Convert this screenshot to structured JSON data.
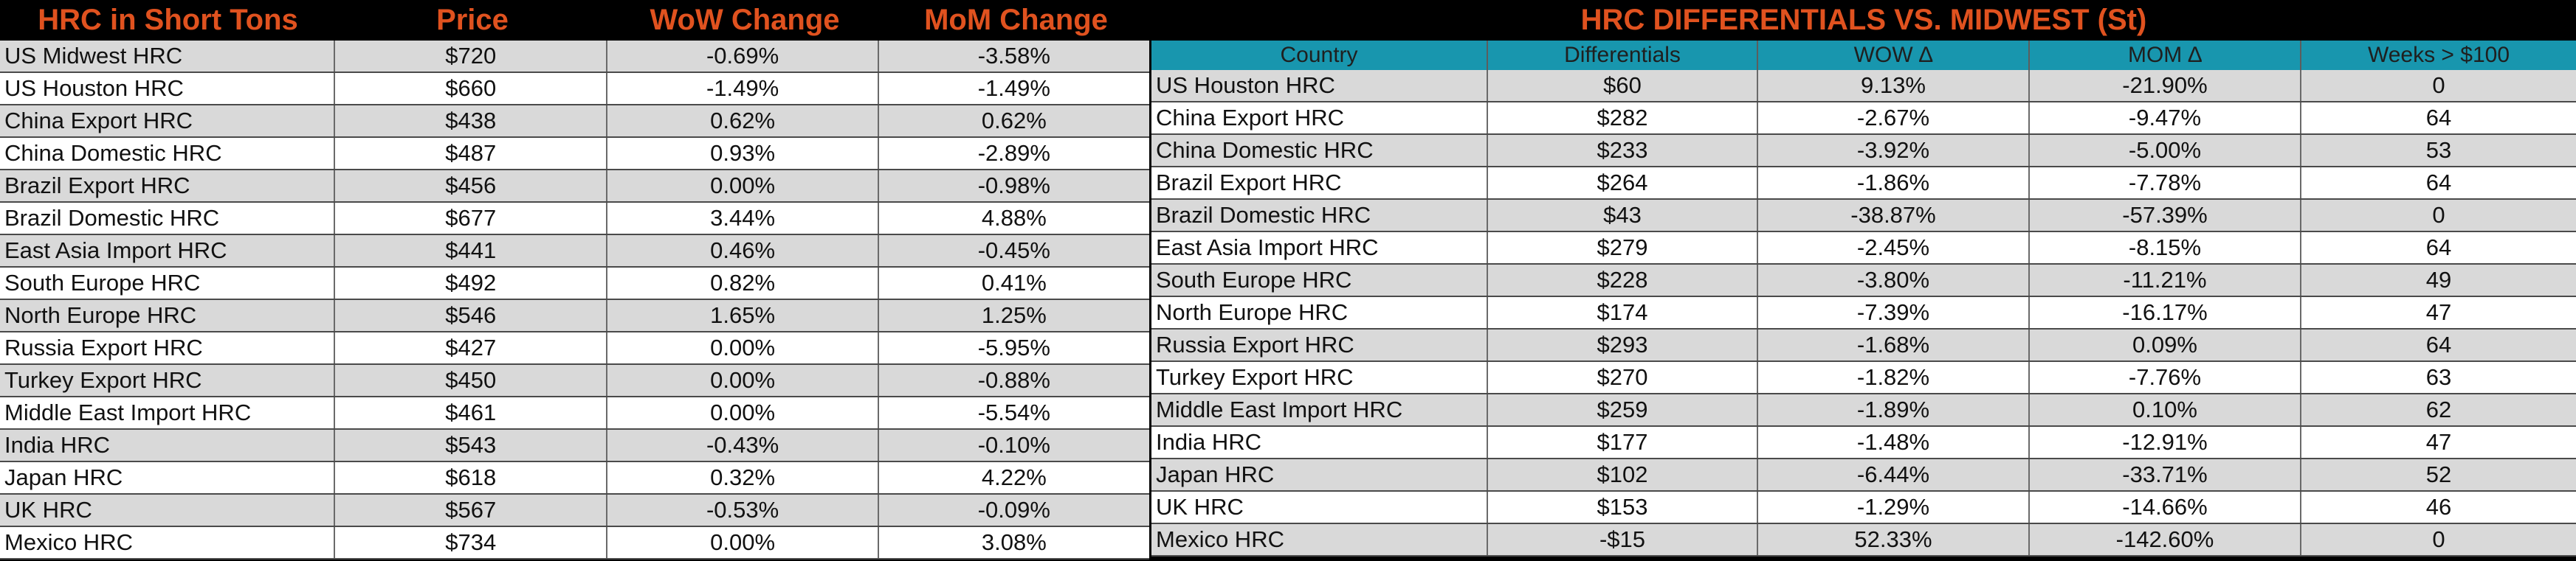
{
  "left_table": {
    "headers": [
      "HRC in Short Tons",
      "Price",
      "WoW Change",
      "MoM Change"
    ],
    "rows": [
      [
        "US Midwest HRC",
        "$720",
        "-0.69%",
        "-3.58%"
      ],
      [
        "US Houston HRC",
        "$660",
        "-1.49%",
        "-1.49%"
      ],
      [
        "China Export HRC",
        "$438",
        "0.62%",
        "0.62%"
      ],
      [
        "China Domestic HRC",
        "$487",
        "0.93%",
        "-2.89%"
      ],
      [
        "Brazil Export HRC",
        "$456",
        "0.00%",
        "-0.98%"
      ],
      [
        "Brazil Domestic HRC",
        "$677",
        "3.44%",
        "4.88%"
      ],
      [
        "East Asia Import HRC",
        "$441",
        "0.46%",
        "-0.45%"
      ],
      [
        "South Europe HRC",
        "$492",
        "0.82%",
        "0.41%"
      ],
      [
        "North Europe HRC",
        "$546",
        "1.65%",
        "1.25%"
      ],
      [
        "Russia Export HRC",
        "$427",
        "0.00%",
        "-5.95%"
      ],
      [
        "Turkey Export HRC",
        "$450",
        "0.00%",
        "-0.88%"
      ],
      [
        "Middle East Import HRC",
        "$461",
        "0.00%",
        "-5.54%"
      ],
      [
        "India HRC",
        "$543",
        "-0.43%",
        "-0.10%"
      ],
      [
        "Japan HRC",
        "$618",
        "0.32%",
        "4.22%"
      ],
      [
        "UK HRC",
        "$567",
        "-0.53%",
        "-0.09%"
      ],
      [
        "Mexico HRC",
        "$734",
        "0.00%",
        "3.08%"
      ]
    ]
  },
  "right_table": {
    "title": "HRC DIFFERENTIALS VS. MIDWEST (St)",
    "headers": [
      "Country",
      "Differentials",
      "WOW ∆",
      "MOM ∆",
      "Weeks > $100"
    ],
    "rows": [
      [
        "US Houston HRC",
        "$60",
        "9.13%",
        "-21.90%",
        "0"
      ],
      [
        "China Export HRC",
        "$282",
        "-2.67%",
        "-9.47%",
        "64"
      ],
      [
        "China Domestic HRC",
        "$233",
        "-3.92%",
        "-5.00%",
        "53"
      ],
      [
        "Brazil Export HRC",
        "$264",
        "-1.86%",
        "-7.78%",
        "64"
      ],
      [
        "Brazil Domestic HRC",
        "$43",
        "-38.87%",
        "-57.39%",
        "0"
      ],
      [
        "East Asia Import HRC",
        "$279",
        "-2.45%",
        "-8.15%",
        "64"
      ],
      [
        "South Europe HRC",
        "$228",
        "-3.80%",
        "-11.21%",
        "49"
      ],
      [
        "North Europe HRC",
        "$174",
        "-7.39%",
        "-16.17%",
        "47"
      ],
      [
        "Russia Export HRC",
        "$293",
        "-1.68%",
        "0.09%",
        "64"
      ],
      [
        "Turkey Export HRC",
        "$270",
        "-1.82%",
        "-7.76%",
        "63"
      ],
      [
        "Middle East Import HRC",
        "$259",
        "-1.89%",
        "0.10%",
        "62"
      ],
      [
        "India HRC",
        "$177",
        "-1.48%",
        "-12.91%",
        "47"
      ],
      [
        "Japan HRC",
        "$102",
        "-6.44%",
        "-33.71%",
        "52"
      ],
      [
        "UK HRC",
        "$153",
        "-1.29%",
        "-14.66%",
        "46"
      ],
      [
        "Mexico HRC",
        "-$15",
        "52.33%",
        "-142.60%",
        "0"
      ]
    ]
  },
  "colors": {
    "header_text": "#e0521f",
    "header_bg": "#000000",
    "subheader_bg": "#1896ae",
    "row_shaded": "#d9d9d9",
    "row_plain": "#ffffff"
  }
}
